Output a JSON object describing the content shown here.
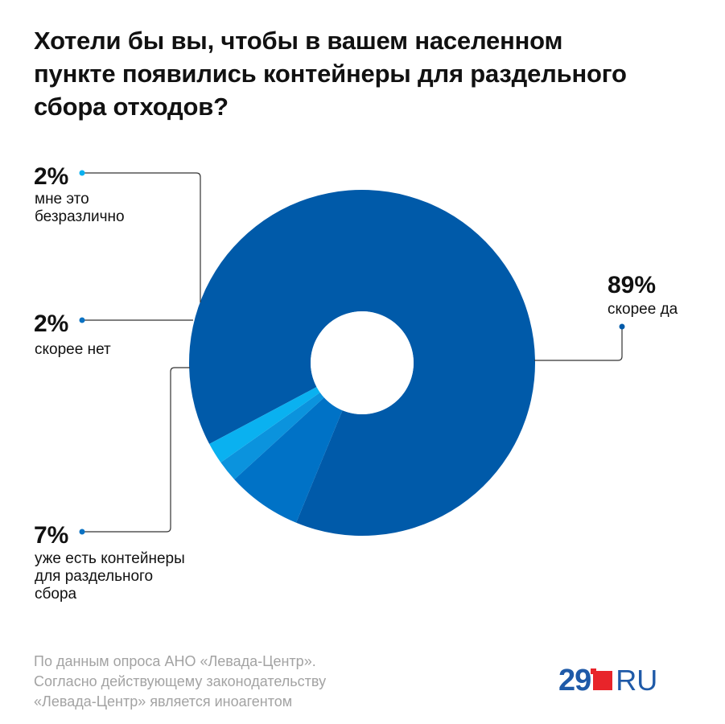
{
  "title_lines": [
    "Хотели бы вы, чтобы в вашем населенном",
    "пункте появились контейнеры для раздельного",
    "сбора отходов?"
  ],
  "chart_data": {
    "type": "pie",
    "donut": true,
    "slices": [
      {
        "label": "скорее да",
        "value": 89,
        "display": "89%",
        "color": "#005aa9"
      },
      {
        "label": "уже есть контейнеры для раздельного сбора",
        "value": 7,
        "display": "7%",
        "color": "#0072c6"
      },
      {
        "label": "скорее нет",
        "value": 2,
        "display": "2%",
        "color": "#0b93dd"
      },
      {
        "label": "мне это безразлично",
        "value": 2,
        "display": "2%",
        "color": "#0ab1f0"
      }
    ]
  },
  "callouts": {
    "indifferent": {
      "pct": "2%",
      "lines": [
        "мне это",
        "безразлично"
      ]
    },
    "rather_no": {
      "pct": "2%",
      "lines": [
        "скорее нет"
      ]
    },
    "have_containers": {
      "pct": "7%",
      "lines": [
        "уже есть контейнеры",
        "для раздельного",
        "сбора"
      ]
    },
    "rather_yes": {
      "pct": "89%",
      "lines": [
        "скорее да"
      ]
    }
  },
  "source_lines": [
    "По данным опроса АНО «Левада-Центр».",
    "Согласно действующему законодательству",
    "«Левада-Центр» является иноагентом"
  ],
  "logo": {
    "number": "29",
    "suffix": "RU",
    "number_color": "#1f5aa8",
    "square_color": "#e8242a"
  }
}
